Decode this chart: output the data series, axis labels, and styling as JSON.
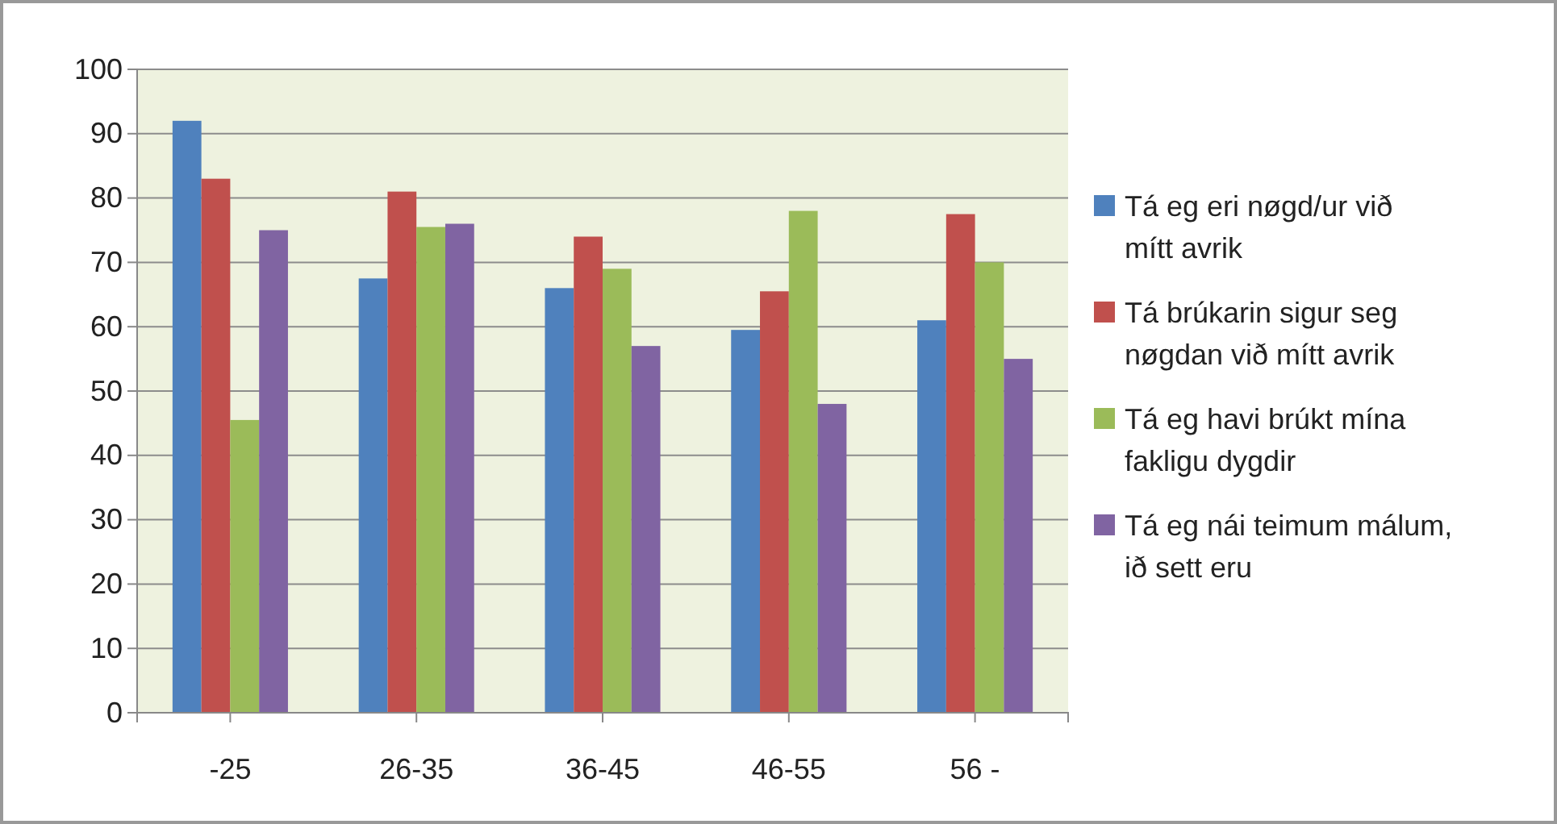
{
  "chart_data": {
    "type": "bar",
    "categories": [
      "-25",
      "26-35",
      "36-45",
      "46-55",
      "56 -"
    ],
    "series": [
      {
        "name": "Tá eg eri nøgd/ur við mítt avrik",
        "color": "#4f81bd",
        "values": [
          92,
          67.5,
          66,
          59.5,
          61
        ]
      },
      {
        "name": "Tá brúkarin sigur seg nøgdan við mítt avrik",
        "color": "#c0504d",
        "values": [
          83,
          81,
          74,
          65.5,
          77.5
        ]
      },
      {
        "name": "Tá eg havi brúkt mína fakligu dygdir",
        "color": "#9bbb59",
        "values": [
          45.5,
          75.5,
          69,
          78,
          70
        ]
      },
      {
        "name": "Tá eg nái teimum málum, ið sett eru",
        "color": "#8064a2",
        "values": [
          75,
          76,
          57,
          48,
          55
        ]
      }
    ],
    "ylim": [
      0,
      100
    ],
    "yticks": [
      0,
      10,
      20,
      30,
      40,
      50,
      60,
      70,
      80,
      90,
      100
    ],
    "grid": "y",
    "legend": "right"
  }
}
